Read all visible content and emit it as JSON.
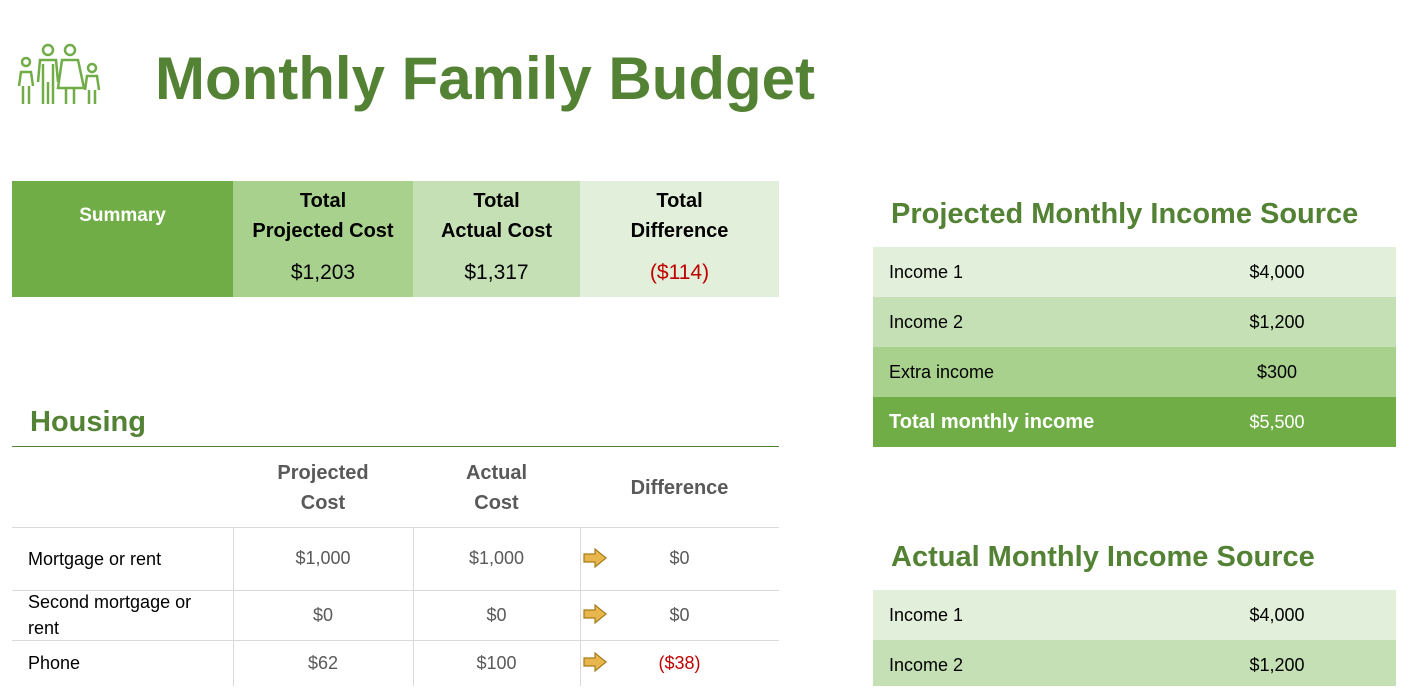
{
  "title": "Monthly Family Budget",
  "summary": {
    "label": "Summary",
    "headers": [
      [
        "Total",
        "Projected Cost"
      ],
      [
        "Total",
        "Actual Cost"
      ],
      [
        "Total",
        "Difference"
      ]
    ],
    "values": [
      "$1,203",
      "$1,317",
      "($114)"
    ]
  },
  "housing": {
    "title": "Housing",
    "headers": [
      [
        "Projected",
        "Cost"
      ],
      [
        "Actual",
        "Cost"
      ],
      [
        "Difference"
      ]
    ],
    "rows": [
      [
        "Mortgage or rent",
        "$1,000",
        "$1,000",
        "$0"
      ],
      [
        "Second mortgage or rent",
        "$0",
        "$0",
        "$0"
      ],
      [
        "Phone",
        "$62",
        "$100",
        "($38)"
      ]
    ]
  },
  "projected_income": {
    "title": "Projected Monthly Income Source",
    "rows": [
      [
        "Income 1",
        "$4,000"
      ],
      [
        "Income 2",
        "$1,200"
      ],
      [
        "Extra income",
        "$300"
      ],
      [
        "Total monthly income",
        "$5,500"
      ]
    ]
  },
  "actual_income": {
    "title": "Actual Monthly Income Source",
    "rows": [
      [
        "Income 1",
        "$4,000"
      ],
      [
        "Income 2",
        "$1,200"
      ]
    ]
  }
}
